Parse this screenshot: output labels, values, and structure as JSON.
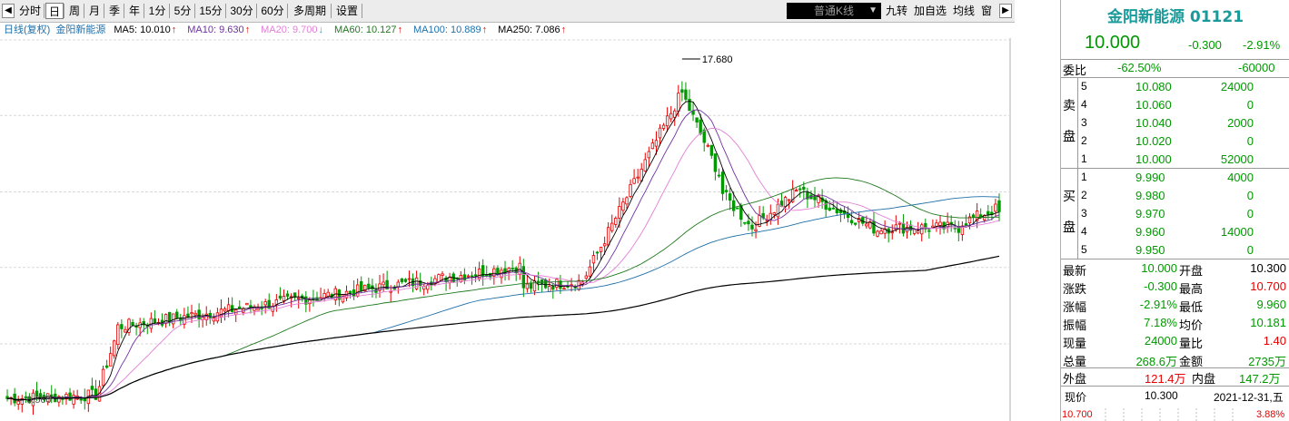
{
  "toolbar": {
    "buttons": [
      "分时",
      "日",
      "周",
      "月",
      "季",
      "年",
      "1分",
      "5分",
      "15分",
      "30分",
      "60分",
      "多周期",
      "设置"
    ],
    "selected": "日",
    "kline_type": "普通K线",
    "right_buttons": [
      "九转",
      "加自选",
      "均线",
      "窗"
    ]
  },
  "ma_legend": {
    "title": "日线(复权)",
    "stock": "金阳新能源",
    "items": [
      {
        "label": "MA5: 10.010",
        "arrow": "↑",
        "color": "#000000"
      },
      {
        "label": "MA10: 9.630",
        "arrow": "↑",
        "color": "#7030a0"
      },
      {
        "label": "MA20: 9.700",
        "arrow": "↓",
        "color": "#e37fd6"
      },
      {
        "label": "MA60: 10.127",
        "arrow": "↑",
        "color": "#1f7a1f"
      },
      {
        "label": "MA100: 10.889",
        "arrow": "↑",
        "color": "#1f6fa8"
      },
      {
        "label": "MA250: 7.086",
        "arrow": "↑",
        "color": "#000000"
      }
    ]
  },
  "chart_data": {
    "type": "candlestick",
    "y_ticks": [
      "18.636",
      "14.838",
      "10.994",
      "7.196",
      "3.352"
    ],
    "y_values": [
      18.636,
      14.838,
      10.994,
      7.196,
      3.352
    ],
    "high_label": "17.680",
    "low_label": "0.560",
    "ylim": [
      0.5,
      19.5
    ],
    "bars": 270,
    "colors": {
      "up": "#e60000",
      "down": "#009900"
    }
  },
  "quote": {
    "title": "金阳新能源 01121",
    "price": "10.000",
    "change": "-0.300",
    "pct": "-2.91%",
    "weibi_label": "委比",
    "weibi_pct": "-62.50%",
    "weibi_val": "-60000",
    "sell_label": [
      "卖",
      "盘"
    ],
    "buy_label": [
      "买",
      "盘"
    ],
    "sell": [
      {
        "lvl": "5",
        "price": "10.080",
        "vol": "24000"
      },
      {
        "lvl": "4",
        "price": "10.060",
        "vol": "0"
      },
      {
        "lvl": "3",
        "price": "10.040",
        "vol": "2000"
      },
      {
        "lvl": "2",
        "price": "10.020",
        "vol": "0"
      },
      {
        "lvl": "1",
        "price": "10.000",
        "vol": "52000"
      }
    ],
    "buy": [
      {
        "lvl": "1",
        "price": "9.990",
        "vol": "4000"
      },
      {
        "lvl": "2",
        "price": "9.980",
        "vol": "0"
      },
      {
        "lvl": "3",
        "price": "9.970",
        "vol": "0"
      },
      {
        "lvl": "4",
        "price": "9.960",
        "vol": "14000"
      },
      {
        "lvl": "5",
        "price": "9.950",
        "vol": "0"
      }
    ],
    "stats": [
      {
        "l1": "最新",
        "v1": "10.000",
        "c1": "green",
        "l2": "开盘",
        "v2": "10.300",
        "c2": "dark"
      },
      {
        "l1": "涨跌",
        "v1": "-0.300",
        "c1": "green",
        "l2": "最高",
        "v2": "10.700",
        "c2": "red"
      },
      {
        "l1": "涨幅",
        "v1": "-2.91%",
        "c1": "green",
        "l2": "最低",
        "v2": "9.960",
        "c2": "green"
      },
      {
        "l1": "振幅",
        "v1": "7.18%",
        "c1": "green",
        "l2": "均价",
        "v2": "10.181",
        "c2": "green"
      },
      {
        "l1": "现量",
        "v1": "24000",
        "c1": "green",
        "l2": "量比",
        "v2": "1.40",
        "c2": "red"
      },
      {
        "l1": "总量",
        "v1": "268.6万",
        "c1": "green",
        "l2": "金额",
        "v2": "2735万",
        "c2": "green"
      }
    ],
    "outer_label": "外盘",
    "outer_val": "121.4万",
    "inner_label": "内盘",
    "inner_val": "147.2万",
    "now_label": "现价",
    "now_val": "10.300",
    "date": "2021-12-31,五",
    "bottom_left": "10.700",
    "bottom_right": "3.88%"
  }
}
